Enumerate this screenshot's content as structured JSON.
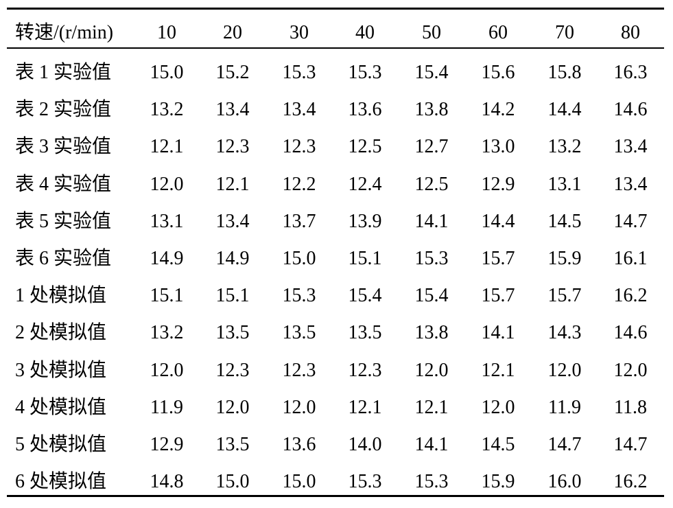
{
  "table": {
    "header": [
      "转速/(r/min)",
      "10",
      "20",
      "30",
      "40",
      "50",
      "60",
      "70",
      "80"
    ],
    "rows": [
      [
        "表 1 实验值",
        "15.0",
        "15.2",
        "15.3",
        "15.3",
        "15.4",
        "15.6",
        "15.8",
        "16.3"
      ],
      [
        "表 2 实验值",
        "13.2",
        "13.4",
        "13.4",
        "13.6",
        "13.8",
        "14.2",
        "14.4",
        "14.6"
      ],
      [
        "表 3 实验值",
        "12.1",
        "12.3",
        "12.3",
        "12.5",
        "12.7",
        "13.0",
        "13.2",
        "13.4"
      ],
      [
        "表 4 实验值",
        "12.0",
        "12.1",
        "12.2",
        "12.4",
        "12.5",
        "12.9",
        "13.1",
        "13.4"
      ],
      [
        "表 5 实验值",
        "13.1",
        "13.4",
        "13.7",
        "13.9",
        "14.1",
        "14.4",
        "14.5",
        "14.7"
      ],
      [
        "表 6 实验值",
        "14.9",
        "14.9",
        "15.0",
        "15.1",
        "15.3",
        "15.7",
        "15.9",
        "16.1"
      ],
      [
        "1 处模拟值",
        "15.1",
        "15.1",
        "15.3",
        "15.4",
        "15.4",
        "15.7",
        "15.7",
        "16.2"
      ],
      [
        "2 处模拟值",
        "13.2",
        "13.5",
        "13.5",
        "13.5",
        "13.8",
        "14.1",
        "14.3",
        "14.6"
      ],
      [
        "3 处模拟值",
        "12.0",
        "12.3",
        "12.3",
        "12.3",
        "12.0",
        "12.1",
        "12.0",
        "12.0"
      ],
      [
        "4 处模拟值",
        "11.9",
        "12.0",
        "12.0",
        "12.1",
        "12.1",
        "12.0",
        "11.9",
        "11.8"
      ],
      [
        "5 处模拟值",
        "12.9",
        "13.5",
        "13.6",
        "14.0",
        "14.1",
        "14.5",
        "14.7",
        "14.7"
      ],
      [
        "6 处模拟值",
        "14.8",
        "15.0",
        "15.0",
        "15.3",
        "15.3",
        "15.9",
        "16.0",
        "16.2"
      ]
    ]
  }
}
